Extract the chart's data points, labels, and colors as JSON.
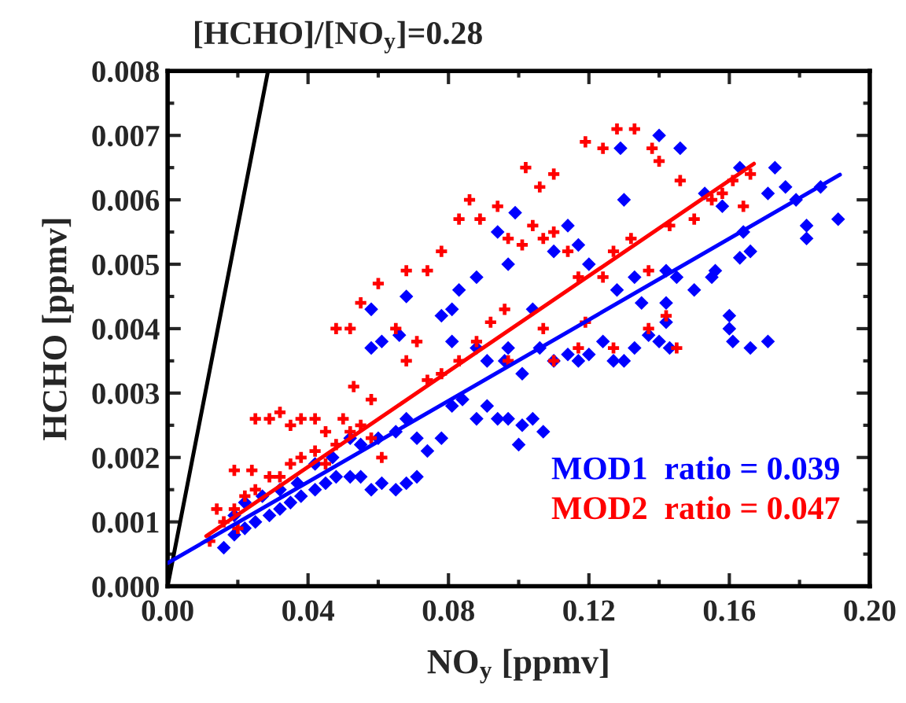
{
  "chart_data": {
    "type": "scatter",
    "xlabel": "NO$_{y}$ [ppmv]",
    "ylabel": "HCHO [ppmv]",
    "annotations": [
      {
        "text": "[HCHO]/[NO$_{y}$]=0.28",
        "x": 0.0286,
        "y": 0.008
      }
    ],
    "xlim": [
      0,
      0.2
    ],
    "xticks": [
      {
        "value": 0,
        "label": "0.00"
      },
      {
        "value": 0.04,
        "label": "0.04"
      },
      {
        "value": 0.08,
        "label": "0.08"
      },
      {
        "value": 0.12,
        "label": "0.12"
      },
      {
        "value": 0.16,
        "label": "0.16"
      },
      {
        "value": 0.2,
        "label": "0.20"
      }
    ],
    "ylim": [
      0,
      0.008
    ],
    "yticks": [
      {
        "value": 0,
        "label": "0.000"
      },
      {
        "value": 0.001,
        "label": "0.001"
      },
      {
        "value": 0.002,
        "label": "0.002"
      },
      {
        "value": 0.003,
        "label": "0.003"
      },
      {
        "value": 0.004,
        "label": "0.004"
      },
      {
        "value": 0.005,
        "label": "0.005"
      },
      {
        "value": 0.006,
        "label": "0.006"
      },
      {
        "value": 0.007,
        "label": "0.007"
      },
      {
        "value": 0.008,
        "label": "0.008"
      }
    ],
    "grid": false,
    "legend": "bottom right",
    "series": [
      {
        "name": "MOD1  ratio = 0.039",
        "marker": "diamond",
        "color": "#0000ff",
        "x": [
          0.016,
          0.019,
          0.022,
          0.025,
          0.029,
          0.032,
          0.035,
          0.038,
          0.042,
          0.045,
          0.048,
          0.052,
          0.055,
          0.058,
          0.061,
          0.065,
          0.068,
          0.071,
          0.019,
          0.022,
          0.027,
          0.032,
          0.037,
          0.042,
          0.047,
          0.052,
          0.055,
          0.06,
          0.065,
          0.068,
          0.071,
          0.074,
          0.078,
          0.081,
          0.084,
          0.088,
          0.091,
          0.094,
          0.097,
          0.101,
          0.104,
          0.107,
          0.1,
          0.058,
          0.061,
          0.066,
          0.058,
          0.068,
          0.078,
          0.081,
          0.081,
          0.088,
          0.091,
          0.096,
          0.097,
          0.101,
          0.106,
          0.11,
          0.114,
          0.117,
          0.12,
          0.124,
          0.127,
          0.13,
          0.133,
          0.137,
          0.142,
          0.145,
          0.15,
          0.155,
          0.16,
          0.161,
          0.166,
          0.171,
          0.16,
          0.156,
          0.163,
          0.166,
          0.164,
          0.171,
          0.176,
          0.179,
          0.182,
          0.186,
          0.191,
          0.182,
          0.173,
          0.163,
          0.158,
          0.153,
          0.146,
          0.14,
          0.129,
          0.13,
          0.117,
          0.114,
          0.11,
          0.104,
          0.097,
          0.094,
          0.088,
          0.083,
          0.099,
          0.12,
          0.128,
          0.133,
          0.135,
          0.142,
          0.143,
          0.14,
          0.142
        ],
        "values": [
          0.0006,
          0.0008,
          0.0009,
          0.001,
          0.0011,
          0.0012,
          0.0013,
          0.0014,
          0.0015,
          0.0016,
          0.0017,
          0.0017,
          0.0017,
          0.0015,
          0.0016,
          0.0015,
          0.0016,
          0.0017,
          0.0011,
          0.0013,
          0.0014,
          0.0015,
          0.0016,
          0.0019,
          0.002,
          0.0023,
          0.0022,
          0.0023,
          0.0024,
          0.0026,
          0.0023,
          0.0021,
          0.0023,
          0.0028,
          0.0029,
          0.0026,
          0.0028,
          0.0026,
          0.0026,
          0.0025,
          0.0026,
          0.0024,
          0.0022,
          0.0037,
          0.0038,
          0.0039,
          0.0043,
          0.0045,
          0.0042,
          0.0043,
          0.0038,
          0.0037,
          0.0035,
          0.0035,
          0.0037,
          0.0033,
          0.0037,
          0.0035,
          0.0036,
          0.0035,
          0.0036,
          0.0038,
          0.0035,
          0.0035,
          0.0037,
          0.0039,
          0.0041,
          0.0048,
          0.0046,
          0.0048,
          0.004,
          0.0038,
          0.0037,
          0.0038,
          0.0042,
          0.0049,
          0.0051,
          0.0052,
          0.0055,
          0.0061,
          0.0062,
          0.006,
          0.0056,
          0.0062,
          0.0057,
          0.0054,
          0.0065,
          0.0065,
          0.0059,
          0.0061,
          0.0068,
          0.007,
          0.0068,
          0.006,
          0.0053,
          0.0056,
          0.0052,
          0.0043,
          0.005,
          0.0055,
          0.0048,
          0.0046,
          0.0058,
          0.005,
          0.0046,
          0.0048,
          0.0044,
          0.0044,
          0.0037,
          0.0038,
          0.0049
        ]
      },
      {
        "name": "MOD2  ratio = 0.047",
        "marker": "cross",
        "color": "#ff0000",
        "x": [
          0.012,
          0.014,
          0.016,
          0.019,
          0.02,
          0.022,
          0.025,
          0.019,
          0.024,
          0.029,
          0.032,
          0.035,
          0.038,
          0.042,
          0.045,
          0.048,
          0.052,
          0.055,
          0.058,
          0.061,
          0.025,
          0.029,
          0.032,
          0.035,
          0.038,
          0.042,
          0.045,
          0.05,
          0.053,
          0.058,
          0.048,
          0.052,
          0.055,
          0.06,
          0.065,
          0.068,
          0.071,
          0.074,
          0.078,
          0.083,
          0.088,
          0.092,
          0.096,
          0.068,
          0.074,
          0.078,
          0.083,
          0.086,
          0.089,
          0.094,
          0.097,
          0.101,
          0.104,
          0.107,
          0.11,
          0.114,
          0.117,
          0.119,
          0.124,
          0.127,
          0.132,
          0.137,
          0.143,
          0.15,
          0.155,
          0.158,
          0.161,
          0.166,
          0.164,
          0.146,
          0.14,
          0.133,
          0.128,
          0.124,
          0.119,
          0.11,
          0.106,
          0.102,
          0.138,
          0.145,
          0.127,
          0.117,
          0.107,
          0.137,
          0.142,
          0.097,
          0.11
        ],
        "values": [
          0.0007,
          0.0012,
          0.001,
          0.0012,
          0.0009,
          0.0014,
          0.0015,
          0.0018,
          0.0018,
          0.0017,
          0.0017,
          0.0019,
          0.002,
          0.0021,
          0.0019,
          0.0022,
          0.0024,
          0.0025,
          0.0023,
          0.002,
          0.0026,
          0.0026,
          0.0027,
          0.0025,
          0.0026,
          0.0026,
          0.0024,
          0.0026,
          0.0031,
          0.0029,
          0.004,
          0.004,
          0.0044,
          0.0047,
          0.004,
          0.0035,
          0.0038,
          0.0032,
          0.0033,
          0.0035,
          0.0038,
          0.0041,
          0.0043,
          0.0049,
          0.0049,
          0.0052,
          0.0057,
          0.006,
          0.0057,
          0.0059,
          0.0054,
          0.0053,
          0.0056,
          0.0054,
          0.0055,
          0.0052,
          0.0048,
          0.0041,
          0.0048,
          0.0052,
          0.0054,
          0.0049,
          0.0056,
          0.0057,
          0.006,
          0.0061,
          0.0063,
          0.0064,
          0.0059,
          0.0063,
          0.0066,
          0.0071,
          0.0071,
          0.0068,
          0.0069,
          0.0064,
          0.0062,
          0.0065,
          0.0068,
          0.0037,
          0.0037,
          0.0037,
          0.004,
          0.004,
          0.0042,
          0.0035,
          0.0035
        ]
      },
      {
        "type": "line",
        "color": "#000000",
        "x": [
          0,
          0.0286
        ],
        "values": [
          0,
          0.008
        ]
      },
      {
        "type": "line",
        "color": "#0000ff",
        "x": [
          0,
          0.1915
        ],
        "values": [
          0.00036,
          0.00639
        ]
      },
      {
        "type": "line",
        "color": "#ff0000",
        "x": [
          0.011,
          0.167
        ],
        "values": [
          0.00078,
          0.00656
        ]
      }
    ]
  }
}
